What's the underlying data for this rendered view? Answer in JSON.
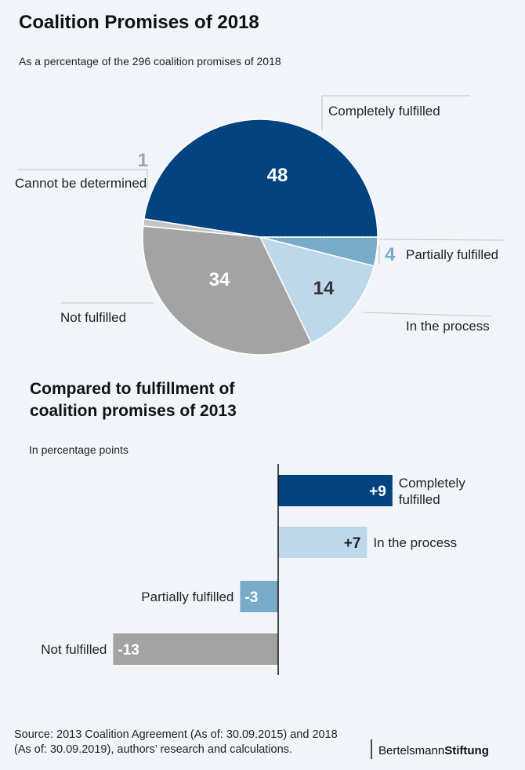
{
  "chart_data": [
    {
      "type": "pie",
      "title": "Coalition Promises of 2018",
      "subtitle": "As a percentage of the 296 coalition promises of 2018",
      "slices": [
        {
          "label": "Completely fulfilled",
          "value": 48,
          "value_label": "48",
          "color": "#03437f"
        },
        {
          "label": "Partially fulfilled",
          "value": 4,
          "value_label": "4",
          "color": "#78abc9"
        },
        {
          "label": "In the process",
          "value": 14,
          "value_label": "14",
          "color": "#bdd8ea"
        },
        {
          "label": "Not fulfilled",
          "value": 34,
          "value_label": "34",
          "color": "#a3a3a3"
        },
        {
          "label": "Cannot be determined",
          "value": 1,
          "value_label": "1",
          "color": "#c4c4c4"
        }
      ]
    },
    {
      "type": "bar",
      "orientation": "horizontal",
      "title": "Compared to fulfillment of coalition promises of 2013",
      "subtitle": "In percentage points",
      "xlim": [
        -13,
        9
      ],
      "bars": [
        {
          "category": "Completely fulfilled",
          "value": 9,
          "value_label": "+9",
          "color": "#03437f"
        },
        {
          "category": "In the process",
          "value": 7,
          "value_label": "+7",
          "color": "#bdd8ea"
        },
        {
          "category": "Partially fulfilled",
          "value": -3,
          "value_label": "-3",
          "color": "#78abc9"
        },
        {
          "category": "Not fulfilled",
          "value": -13,
          "value_label": "-13",
          "color": "#a3a3a3"
        }
      ]
    }
  ],
  "source": {
    "line1": "Source: 2013 Coalition Agreement (As of: 30.09.2015) and 2018",
    "line2": "(As of: 30.09.2019), authors’ research and calculations."
  },
  "logo": {
    "part1": "Bertelsmann",
    "part2": "Stiftung"
  }
}
